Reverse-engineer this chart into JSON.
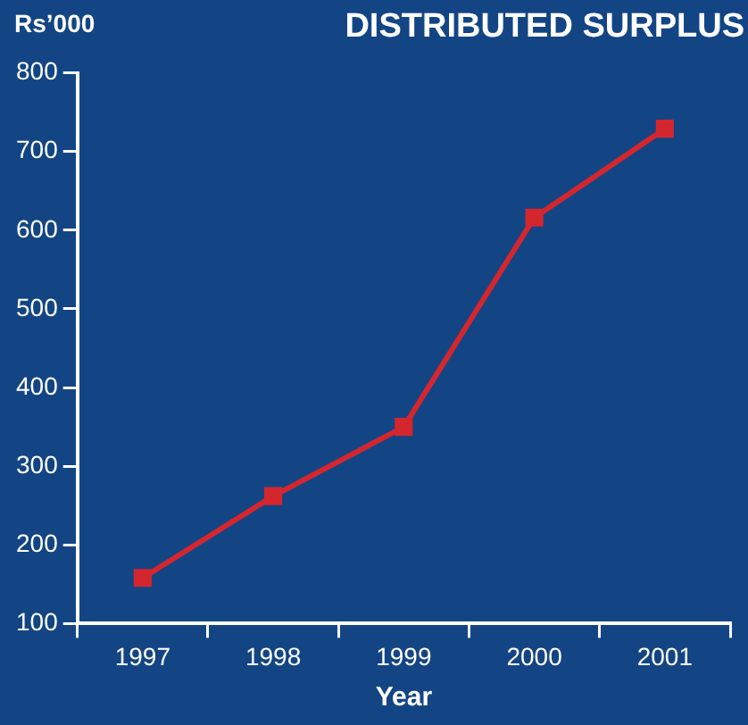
{
  "chart_data": {
    "type": "line",
    "title": "DISTRIBUTED SURPLUS",
    "ylabel": "Rs’000",
    "xlabel": "Year",
    "categories": [
      "1997",
      "1998",
      "1999",
      "2000",
      "2001"
    ],
    "series": [
      {
        "color": "#d4262e",
        "values": [
          158,
          262,
          350,
          616,
          729
        ]
      }
    ],
    "ylim": [
      100,
      800
    ],
    "yticks": [
      100,
      200,
      300,
      400,
      500,
      600,
      700,
      800
    ],
    "marker": "square",
    "line_style": "solid",
    "legend": false
  }
}
